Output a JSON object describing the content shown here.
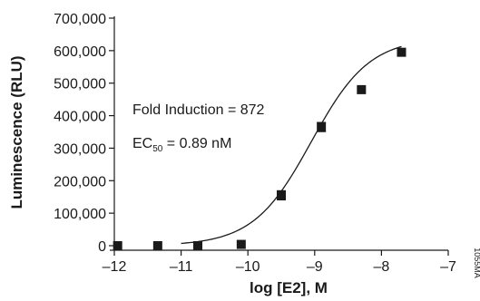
{
  "chart_data": {
    "type": "scatter",
    "xlabel": "log [E2], M",
    "ylabel": "Luminescence (RLU)",
    "xlim": [
      -12,
      -7
    ],
    "ylim": [
      0,
      700000
    ],
    "x_ticks": [
      -12,
      -11,
      -10,
      -9,
      -8,
      -7
    ],
    "x_tick_labels": [
      "–12",
      "–11",
      "–10",
      "–9",
      "–8",
      "–7"
    ],
    "y_ticks": [
      0,
      100000,
      200000,
      300000,
      400000,
      500000,
      600000,
      700000
    ],
    "y_tick_labels": [
      "0",
      "100,000",
      "200,000",
      "300,000",
      "400,000",
      "500,000",
      "600,000",
      "700,000"
    ],
    "grid": false,
    "series": [
      {
        "points": [
          {
            "x": -11.95,
            "y": 0,
            "err": 0
          },
          {
            "x": -11.35,
            "y": 0,
            "err": 0
          },
          {
            "x": -10.75,
            "y": 0,
            "err": 0
          },
          {
            "x": -10.1,
            "y": 4000,
            "err": 0
          },
          {
            "x": -9.5,
            "y": 155000,
            "err": 14000
          },
          {
            "x": -8.9,
            "y": 365000,
            "err": 14000
          },
          {
            "x": -8.3,
            "y": 480000,
            "err": 0
          },
          {
            "x": -7.7,
            "y": 595000,
            "err": 0
          }
        ],
        "fit": {
          "model": "4PL",
          "bottom": 0,
          "top": 640000,
          "logEC50": -9.05,
          "hill": 1.0
        }
      }
    ],
    "annotations": {
      "fold_induction": "Fold Induction = 872",
      "ec50_prefix": "EC",
      "ec50_subscript": "50",
      "ec50_suffix": " = 0.89 nM"
    },
    "side_text": "1055MA"
  }
}
